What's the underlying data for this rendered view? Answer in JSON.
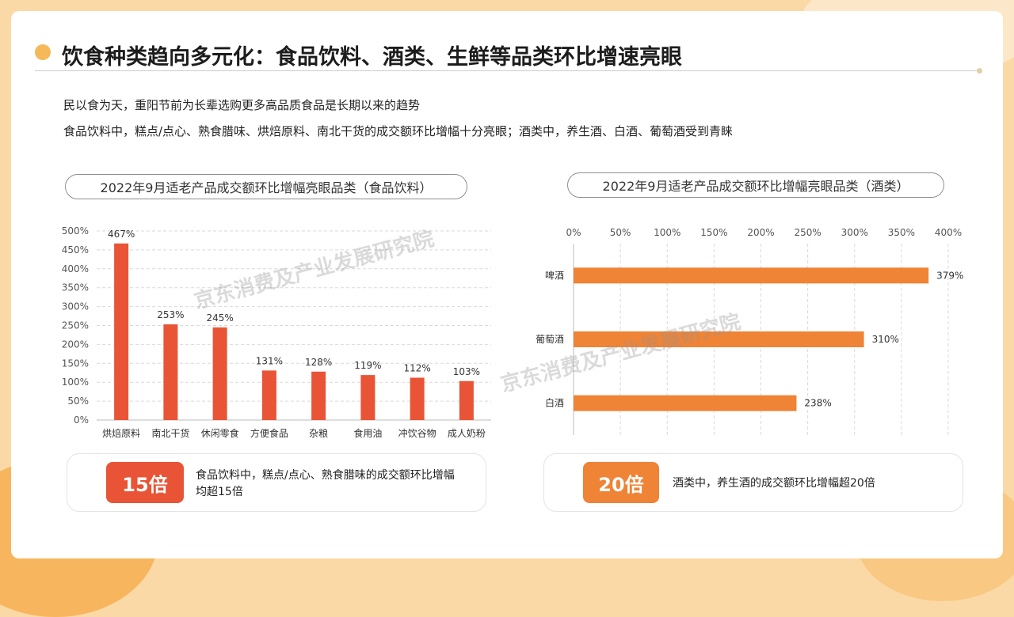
{
  "title": "饮食种类趋向多元化：食品饮料、酒类、生鲜等品类环比增速亮眼",
  "intro_lines": [
    "民以食为天，重阳节前为长辈选购更多高品质食品是长期以来的趋势",
    "食品饮料中，糕点/点心、熟食腊味、烘焙原料、南北干货的成交额环比增幅十分亮眼；酒类中，养生酒、白酒、葡萄酒受到青睐"
  ],
  "watermark": "京东消费及产业发展研究院",
  "colors": {
    "accent": "#f5b95a",
    "bar_red": "#e85435",
    "bar_orange": "#ef8336"
  },
  "chart_data": [
    {
      "type": "bar",
      "title": "2022年9月适老产品成交额环比增幅亮眼品类（食品饮料）",
      "categories": [
        "烘焙原料",
        "南北干货",
        "休闲零食",
        "方便食品",
        "杂粮",
        "食用油",
        "冲饮谷物",
        "成人奶粉"
      ],
      "values": [
        467,
        253,
        245,
        131,
        128,
        119,
        112,
        103
      ],
      "value_labels": [
        "467%",
        "253%",
        "245%",
        "131%",
        "128%",
        "119%",
        "112%",
        "103%"
      ],
      "yticks": [
        "0%",
        "50%",
        "100%",
        "150%",
        "200%",
        "250%",
        "300%",
        "350%",
        "400%",
        "450%",
        "500%"
      ],
      "ylim": [
        0,
        500
      ],
      "grid": true,
      "color": "#e85435"
    },
    {
      "type": "bar",
      "orientation": "horizontal",
      "title": "2022年9月适老产品成交额环比增幅亮眼品类（酒类）",
      "categories": [
        "啤酒",
        "葡萄酒",
        "白酒"
      ],
      "values": [
        379,
        310,
        238
      ],
      "value_labels": [
        "379%",
        "310%",
        "238%"
      ],
      "xticks": [
        "0%",
        "50%",
        "100%",
        "150%",
        "200%",
        "250%",
        "300%",
        "350%",
        "400%"
      ],
      "xlim": [
        0,
        400
      ],
      "grid": true,
      "color": "#ef8336"
    }
  ],
  "annotations": [
    {
      "badge": "15倍",
      "text": "食品饮料中，糕点/点心、熟食腊味的成交额环比增幅均超15倍",
      "color": "#e85435"
    },
    {
      "badge": "20倍",
      "text": "酒类中，养生酒的成交额环比增幅超20倍",
      "color": "#ef8336"
    }
  ]
}
